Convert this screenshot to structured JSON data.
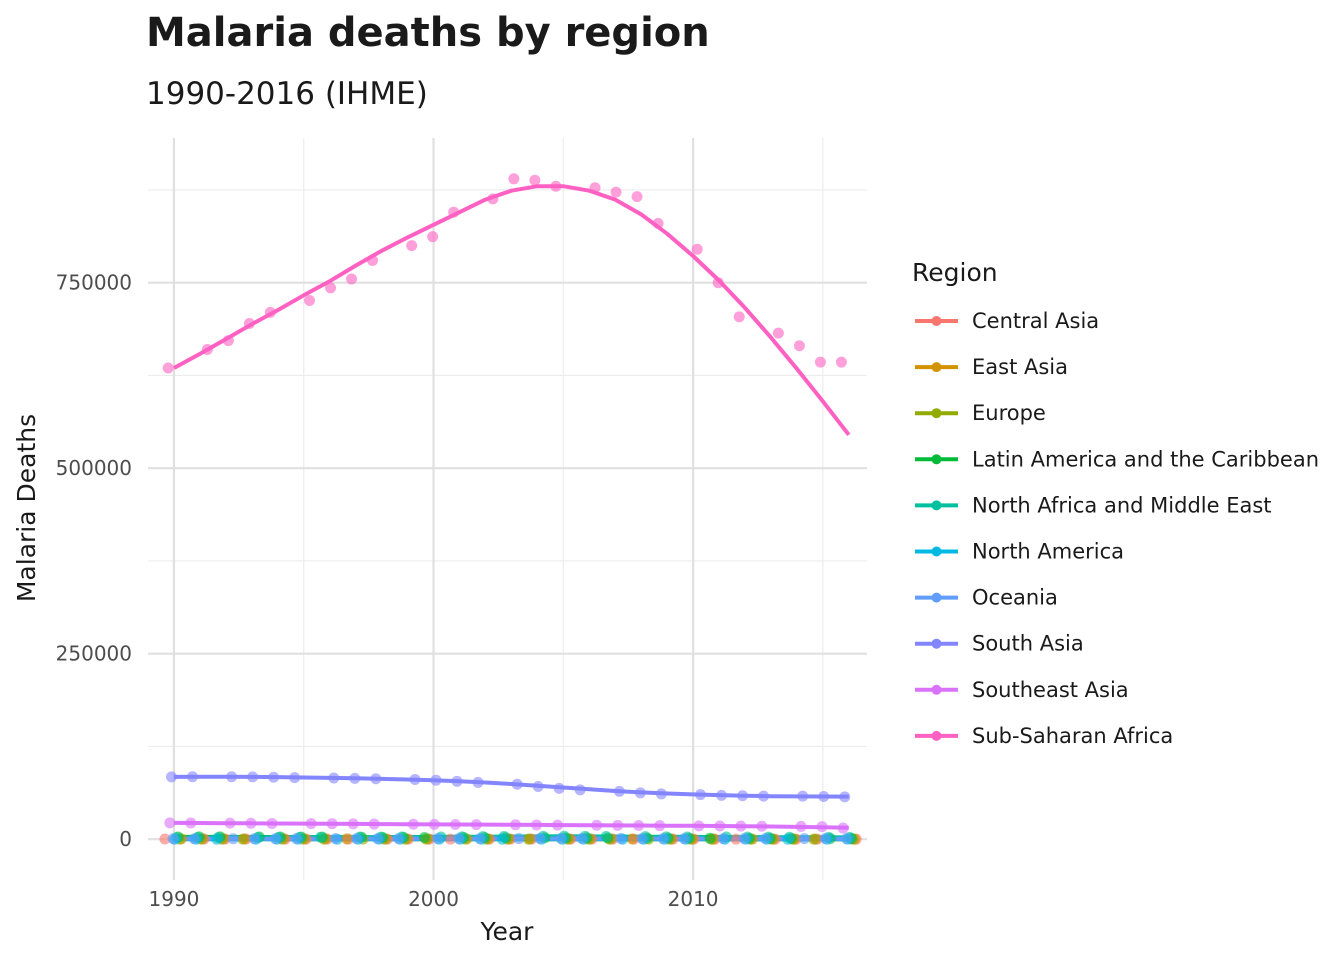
{
  "chart_data": {
    "type": "scatter",
    "title": "Malaria deaths by region",
    "subtitle": "1990-2016 (IHME)",
    "xlabel": "Year",
    "ylabel": "Malaria Deaths",
    "xlim": [
      1989.0,
      2016.7
    ],
    "ylim": [
      -55000,
      945000
    ],
    "x_ticks": [
      1990,
      2000,
      2010
    ],
    "x_tick_labels": [
      "1990",
      "2000",
      "2010"
    ],
    "x_minor_ticks": [
      1995,
      2005,
      2015
    ],
    "y_ticks": [
      0,
      250000,
      500000,
      750000
    ],
    "y_tick_labels": [
      "0",
      "250000",
      "500000",
      "750000"
    ],
    "y_minor_ticks": [
      125000,
      375000,
      625000,
      875000
    ],
    "grid": true,
    "legend_title": "Region",
    "legend_position": "right",
    "trend_lines": "smoothed",
    "x": [
      1990,
      1991,
      1992,
      1993,
      1994,
      1995,
      1996,
      1997,
      1998,
      1999,
      2000,
      2001,
      2002,
      2003,
      2004,
      2005,
      2006,
      2007,
      2008,
      2009,
      2010,
      2011,
      2012,
      2013,
      2014,
      2015,
      2016
    ],
    "series": [
      {
        "name": "Central Asia",
        "color": "#F8766D",
        "values": [
          200,
          190,
          180,
          170,
          160,
          150,
          140,
          130,
          120,
          110,
          100,
          90,
          80,
          70,
          60,
          50,
          45,
          40,
          35,
          30,
          25,
          20,
          18,
          16,
          14,
          12,
          10
        ],
        "trend": [
          200,
          190,
          180,
          170,
          160,
          150,
          140,
          130,
          120,
          110,
          100,
          90,
          80,
          70,
          60,
          50,
          45,
          40,
          35,
          30,
          25,
          20,
          18,
          16,
          14,
          12,
          10
        ]
      },
      {
        "name": "East Asia",
        "color": "#D39200",
        "values": [
          500,
          480,
          460,
          440,
          420,
          400,
          380,
          360,
          340,
          320,
          300,
          290,
          280,
          270,
          260,
          250,
          240,
          230,
          220,
          210,
          200,
          190,
          180,
          170,
          160,
          150,
          140
        ],
        "trend": [
          500,
          480,
          460,
          440,
          420,
          400,
          380,
          360,
          340,
          320,
          300,
          290,
          280,
          270,
          260,
          250,
          240,
          230,
          220,
          210,
          200,
          190,
          180,
          170,
          160,
          150,
          140
        ]
      },
      {
        "name": "Europe",
        "color": "#93AA00",
        "values": [
          60,
          58,
          56,
          54,
          52,
          50,
          48,
          46,
          44,
          42,
          40,
          38,
          36,
          34,
          32,
          30,
          28,
          26,
          24,
          22,
          20,
          18,
          16,
          14,
          12,
          10,
          8
        ],
        "trend": [
          60,
          58,
          56,
          54,
          52,
          50,
          48,
          46,
          44,
          42,
          40,
          38,
          36,
          34,
          32,
          30,
          28,
          26,
          24,
          22,
          20,
          18,
          16,
          14,
          12,
          10,
          8
        ]
      },
      {
        "name": "Latin America and the Caribbean",
        "color": "#00BA38",
        "values": [
          3000,
          3200,
          3100,
          3000,
          2900,
          2800,
          2700,
          2600,
          2500,
          2400,
          2300,
          2200,
          2100,
          2000,
          1900,
          1800,
          1700,
          1600,
          1500,
          1400,
          1300,
          1200,
          1100,
          1000,
          950,
          900,
          850
        ],
        "trend": [
          3100,
          3100,
          3050,
          2990,
          2900,
          2800,
          2700,
          2600,
          2500,
          2400,
          2300,
          2200,
          2100,
          2000,
          1900,
          1800,
          1700,
          1600,
          1500,
          1400,
          1300,
          1200,
          1100,
          1020,
          950,
          900,
          850
        ]
      },
      {
        "name": "North Africa and Middle East",
        "color": "#00C19F",
        "values": [
          2000,
          2100,
          2200,
          2300,
          2400,
          2500,
          2600,
          2700,
          2800,
          2900,
          3000,
          3200,
          3400,
          3600,
          3800,
          4000,
          3800,
          3600,
          3400,
          3200,
          3000,
          2900,
          2800,
          2700,
          2600,
          2500,
          2400
        ],
        "trend": [
          2000,
          2100,
          2200,
          2300,
          2400,
          2500,
          2600,
          2700,
          2800,
          2900,
          3050,
          3230,
          3420,
          3610,
          3780,
          3870,
          3800,
          3620,
          3420,
          3220,
          3040,
          2900,
          2800,
          2700,
          2600,
          2500,
          2400
        ]
      },
      {
        "name": "North America",
        "color": "#00B9E3",
        "values": [
          5,
          5,
          5,
          5,
          5,
          5,
          5,
          5,
          5,
          5,
          5,
          5,
          5,
          5,
          5,
          5,
          5,
          5,
          5,
          5,
          5,
          5,
          5,
          5,
          5,
          5,
          5
        ],
        "trend": [
          5,
          5,
          5,
          5,
          5,
          5,
          5,
          5,
          5,
          5,
          5,
          5,
          5,
          5,
          5,
          5,
          5,
          5,
          5,
          5,
          5,
          5,
          5,
          5,
          5,
          5,
          5
        ]
      },
      {
        "name": "Oceania",
        "color": "#619CFF",
        "values": [
          600,
          620,
          640,
          660,
          680,
          700,
          720,
          740,
          760,
          780,
          800,
          820,
          840,
          860,
          880,
          900,
          880,
          860,
          840,
          820,
          800,
          780,
          760,
          740,
          720,
          700,
          680
        ],
        "trend": [
          600,
          620,
          640,
          660,
          680,
          700,
          720,
          740,
          760,
          780,
          800,
          820,
          840,
          860,
          880,
          890,
          880,
          860,
          840,
          820,
          800,
          780,
          760,
          740,
          720,
          700,
          680
        ]
      },
      {
        "name": "South Asia",
        "color": "#8385FF",
        "values": [
          84000,
          84200,
          84100,
          84000,
          83500,
          83000,
          82500,
          82000,
          81500,
          80500,
          79500,
          78000,
          76500,
          74000,
          71000,
          68500,
          66500,
          64500,
          62500,
          61000,
          60000,
          59000,
          58500,
          58000,
          58000,
          57500,
          57000
        ],
        "trend": [
          84000,
          84100,
          84100,
          84000,
          83700,
          83200,
          82600,
          82000,
          81300,
          80400,
          79400,
          78000,
          76400,
          74400,
          72000,
          69600,
          67200,
          65000,
          63100,
          61600,
          60400,
          59400,
          58600,
          58000,
          57700,
          57500,
          57400
        ]
      },
      {
        "name": "Southeast Asia",
        "color": "#DB72FB",
        "values": [
          22000,
          21800,
          21600,
          21400,
          21200,
          21000,
          20800,
          20600,
          20400,
          20200,
          20000,
          19800,
          19600,
          19400,
          19200,
          19000,
          18800,
          18600,
          18400,
          18200,
          18000,
          17800,
          17600,
          17400,
          17200,
          17000,
          15000
        ],
        "trend": [
          22000,
          21800,
          21600,
          21400,
          21200,
          21000,
          20800,
          20600,
          20400,
          20200,
          20000,
          19800,
          19600,
          19400,
          19200,
          19000,
          18800,
          18600,
          18400,
          18200,
          18000,
          17800,
          17500,
          17100,
          16600,
          16000,
          15300
        ]
      },
      {
        "name": "Sub-Saharan Africa",
        "color": "#FF61C3",
        "values": [
          635000,
          660000,
          672000,
          695000,
          710000,
          726000,
          743000,
          755000,
          780000,
          800000,
          812000,
          845000,
          863000,
          890000,
          888000,
          880000,
          878000,
          872000,
          866000,
          830000,
          795000,
          750000,
          704000,
          682000,
          665000,
          643000,
          643000
        ],
        "trend": [
          635000,
          654000,
          674000,
          694000,
          713000,
          733000,
          752000,
          773000,
          793000,
          811000,
          828000,
          845000,
          862000,
          874000,
          880000,
          880000,
          874000,
          862000,
          842000,
          816000,
          786000,
          753000,
          716000,
          676000,
          634000,
          590000,
          545000
        ]
      }
    ]
  }
}
